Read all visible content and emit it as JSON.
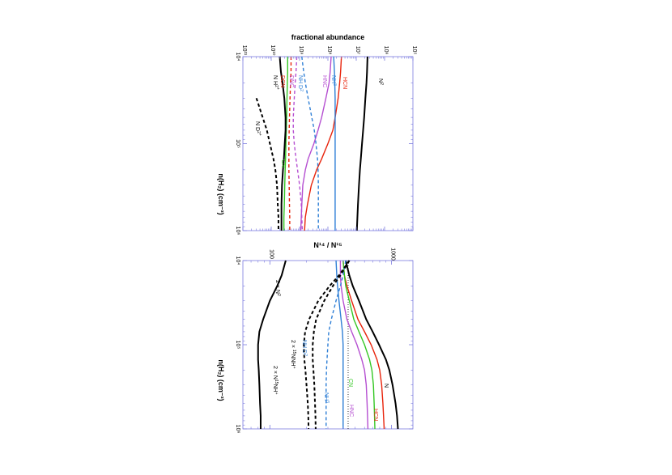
{
  "figure": {
    "orientation": "rotated-90-clockwise"
  },
  "chart_data": [
    {
      "type": "line",
      "xlabel": "n(H₂) (cm⁻³)",
      "ylabel": "fractional abundance",
      "x_scale": "log",
      "y_scale": "log",
      "xlim": [
        10000,
        1000000
      ],
      "ylim": [
        1e-11,
        1e-05
      ],
      "x_ticks": [
        "10⁴",
        "10⁵",
        "10⁶"
      ],
      "y_ticks": [
        "10¹¹",
        "10¹⁰",
        "10⁹",
        "10⁸",
        "10⁷",
        "10⁶",
        "10⁵"
      ],
      "x": [
        10000,
        15000,
        20000,
        30000,
        50000,
        70000,
        100000,
        150000,
        200000,
        300000,
        500000,
        700000,
        1000000
      ],
      "series": [
        {
          "name": "N₂",
          "color": "#000000",
          "dash": "solid",
          "labels": [
            "N",
            "2"
          ],
          "values": [
            2.5e-07,
            2.4e-07,
            2.3e-07,
            2.1e-07,
            1.9e-07,
            1.75e-07,
            1.6e-07,
            1.45e-07,
            1.35e-07,
            1.25e-07,
            1.15e-07,
            1.1e-07,
            1.05e-07
          ]
        },
        {
          "name": "HCN",
          "color": "#e8230b",
          "dash": "solid",
          "labels": [
            "HCN"
          ],
          "values": [
            3e-08,
            2.8e-08,
            2.6e-08,
            2.3e-08,
            1.8e-08,
            1.5e-08,
            1e-08,
            6e-09,
            4e-09,
            2.6e-09,
            1.9e-09,
            1.6e-09,
            1.5e-09
          ]
        },
        {
          "name": "NH₃",
          "color": "#2f7fd6",
          "dash": "solid",
          "labels": [
            "NH",
            "3"
          ],
          "values": [
            1.6e-08,
            1.7e-08,
            1.75e-08,
            1.8e-08,
            1.8e-08,
            1.8e-08,
            1.8e-08,
            1.8e-08,
            1.8e-08,
            1.8e-08,
            1.8e-08,
            1.8e-08,
            1.8e-08
          ]
        },
        {
          "name": "HNC",
          "color": "#b54fd1",
          "dash": "solid",
          "labels": [
            "HNC"
          ],
          "values": [
            1.3e-08,
            1.2e-08,
            1.1e-08,
            8.5e-09,
            6e-09,
            4.5e-09,
            3.2e-09,
            2e-09,
            1.6e-09,
            1.3e-09,
            1.2e-09,
            1.15e-09,
            1.1e-09
          ]
        },
        {
          "name": "NH₂D",
          "color": "#2f7fd6",
          "dash": "dashed",
          "labels": [
            "NH D",
            "2"
          ],
          "values": [
            1.2e-09,
            1.4e-09,
            1.6e-09,
            2e-09,
            2.7e-09,
            3.3e-09,
            3.8e-09,
            4.3e-09,
            4.5e-09,
            4.6e-09,
            4.6e-09,
            4.6e-09,
            4.6e-09
          ]
        },
        {
          "name": "DNC",
          "color": "#b54fd1",
          "dash": "dashed",
          "labels": [
            "DNC"
          ],
          "values": [
            8e-10,
            7.5e-10,
            7e-10,
            6.5e-10,
            6e-10,
            6e-10,
            6.5e-10,
            7.5e-10,
            8.5e-10,
            1e-09,
            1.15e-09,
            1.2e-09,
            1.25e-09
          ]
        },
        {
          "name": "DCN",
          "color": "#e8230b",
          "dash": "dashed",
          "labels": [
            "DCN"
          ],
          "values": [
            5e-10,
            5e-10,
            4.8e-10,
            4.6e-10,
            4.4e-10,
            4.3e-10,
            4.2e-10,
            4.2e-10,
            4.2e-10,
            4.3e-10,
            4.4e-10,
            4.5e-10,
            4.5e-10
          ]
        },
        {
          "name": "CN",
          "color": "#34c724",
          "dash": "solid",
          "labels": [
            "CN"
          ],
          "values": [
            3.8e-10,
            3.8e-10,
            3.7e-10,
            3.6e-10,
            3.5e-10,
            3.4e-10,
            3.3e-10,
            3.2e-10,
            3.1e-10,
            3e-10,
            2.9e-10,
            2.8e-10,
            2.8e-10
          ]
        },
        {
          "name": "N₂H⁺",
          "color": "#000000",
          "dash": "solid",
          "labels": [
            "N H",
            "2",
            "+"
          ],
          "values": [
            2e-10,
            2.2e-10,
            2.5e-10,
            2.9e-10,
            3.2e-10,
            3.2e-10,
            3e-10,
            2.8e-10,
            2.6e-10,
            2.4e-10,
            2.3e-10,
            2.3e-10,
            2.3e-10
          ]
        },
        {
          "name": "N₂D⁺",
          "color": "#000000",
          "dash": "dashed",
          "labels": [
            "N D",
            "2",
            "+"
          ],
          "values": [
            null,
            null,
            null,
            3e-11,
            5e-11,
            7e-11,
            9e-11,
            1.2e-10,
            1.4e-10,
            1.6e-10,
            1.7e-10,
            1.8e-10,
            1.8e-10
          ]
        }
      ]
    },
    {
      "type": "line",
      "xlabel": "n(H₂) (cm⁻³)",
      "ylabel": "N¹⁴ / N¹⁵",
      "x_scale": "log",
      "y_scale": "log",
      "xlim": [
        10000,
        1000000
      ],
      "ylim": [
        60,
        1500
      ],
      "x_ticks": [
        "10⁴",
        "10⁵",
        "10⁶"
      ],
      "y_ticks": [
        "100",
        "1000"
      ],
      "reference_value": 440,
      "x": [
        10000,
        15000,
        20000,
        30000,
        50000,
        70000,
        100000,
        150000,
        200000,
        300000,
        500000,
        700000,
        1000000
      ],
      "series": [
        {
          "name": "N",
          "color": "#000000",
          "dash": "solid",
          "labels": [
            "N"
          ],
          "values": [
            420,
            450,
            480,
            540,
            620,
            700,
            790,
            900,
            960,
            1020,
            1080,
            1110,
            1130
          ]
        },
        {
          "name": "HCN",
          "color": "#e8230b",
          "dash": "solid",
          "labels": [
            "HCN"
          ],
          "values": [
            400,
            410,
            430,
            470,
            530,
            600,
            680,
            760,
            800,
            830,
            850,
            860,
            870
          ]
        },
        {
          "name": "CN",
          "color": "#34c724",
          "dash": "solid",
          "labels": [
            "CN"
          ],
          "values": [
            400,
            410,
            420,
            450,
            490,
            540,
            600,
            660,
            690,
            710,
            720,
            725,
            730
          ]
        },
        {
          "name": "HNC",
          "color": "#b54fd1",
          "dash": "solid",
          "labels": [
            "HNC"
          ],
          "values": [
            380,
            380,
            385,
            400,
            430,
            470,
            520,
            570,
            600,
            620,
            630,
            635,
            640
          ]
        },
        {
          "name": "NH₃",
          "color": "#2f7fd6",
          "dash": "solid",
          "labels": [
            "NH",
            "3"
          ],
          "values": [
            350,
            355,
            360,
            370,
            385,
            395,
            400,
            400,
            400,
            400,
            400,
            400,
            400
          ]
        },
        {
          "name": "NH₂D",
          "color": "#2f7fd6",
          "dash": "dashed",
          "labels": [
            "NH D",
            "2"
          ],
          "values": [
            420,
            400,
            380,
            350,
            320,
            305,
            300,
            295,
            292,
            290,
            290,
            290,
            290
          ]
        },
        {
          "name": "2 × ¹⁵NNH⁺",
          "color": "#000000",
          "dash": "dashed",
          "labels": [
            "2 × ",
            "15",
            "NNH",
            "+"
          ],
          "values": [
            450,
            380,
            330,
            280,
            240,
            230,
            225,
            225,
            228,
            232,
            235,
            237,
            238
          ]
        },
        {
          "name": "2 × N¹⁵NH⁺",
          "color": "#000000",
          "dash": "dashed",
          "labels": [
            "2 × N",
            "15",
            "NH",
            "+"
          ],
          "values": [
            450,
            370,
            310,
            250,
            210,
            195,
            190,
            192,
            196,
            200,
            205,
            207,
            208
          ]
        },
        {
          "name": "2 × N₂",
          "color": "#000000",
          "dash": "solid",
          "labels": [
            "2 × N",
            "2"
          ],
          "values": [
            135,
            125,
            115,
            100,
            88,
            82,
            80,
            80,
            81,
            82,
            83,
            84,
            84
          ]
        }
      ]
    }
  ]
}
